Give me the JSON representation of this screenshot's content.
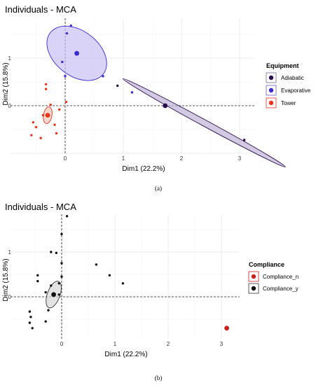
{
  "chart_data": [
    {
      "type": "scatter",
      "title": "Individuals - MCA",
      "xlabel": "Dim1 (22.2%)",
      "ylabel": "Dim2 (15.8%)",
      "xlim": [
        -0.65,
        3.1
      ],
      "ylim": [
        -0.72,
        2.05
      ],
      "x_ticks": [
        "0",
        "1",
        "2",
        "3"
      ],
      "y_ticks": [
        "0",
        "1"
      ],
      "grid": true,
      "legend_title": "Equipment",
      "legend_position": "right",
      "caption": "(a)",
      "series": [
        {
          "name": "Adiabatic",
          "color": "#2a0a4a",
          "points": [
            [
              0.9,
              0.42
            ],
            [
              1.72,
              0.0
            ],
            [
              3.08,
              -0.72
            ]
          ],
          "centroid": [
            1.72,
            0.0
          ]
        },
        {
          "name": "Evaporative",
          "color": "#3a2ad0",
          "points": [
            [
              0.03,
              1.52
            ],
            [
              0.1,
              1.68
            ],
            [
              -0.05,
              0.92
            ],
            [
              0.0,
              0.62
            ],
            [
              0.65,
              0.62
            ],
            [
              1.15,
              0.28
            ]
          ],
          "centroid": [
            0.2,
            1.1
          ]
        },
        {
          "name": "Tower",
          "color": "#e8341c",
          "points": [
            [
              -0.33,
              0.45
            ],
            [
              -0.33,
              0.35
            ],
            [
              0.02,
              0.08
            ],
            [
              -0.25,
              0.02
            ],
            [
              -0.1,
              -0.08
            ],
            [
              -0.3,
              -0.18
            ],
            [
              -0.38,
              -0.2
            ],
            [
              -0.55,
              -0.35
            ],
            [
              -0.5,
              -0.45
            ],
            [
              -0.18,
              -0.4
            ],
            [
              -0.58,
              -0.62
            ],
            [
              -0.42,
              -0.68
            ],
            [
              -0.15,
              -0.58
            ]
          ],
          "centroid": [
            -0.3,
            -0.2
          ]
        }
      ]
    },
    {
      "type": "scatter",
      "title": "Individuals - MCA",
      "xlabel": "Dim1 (22.2%)",
      "ylabel": "Dim2 (15.8%)",
      "xlim": [
        -0.65,
        3.2
      ],
      "ylim": [
        -0.82,
        2.0
      ],
      "x_ticks": [
        "0",
        "1",
        "2",
        "3"
      ],
      "y_ticks": [
        "0",
        "1"
      ],
      "grid": true,
      "legend_title": "Compliance",
      "legend_position": "right",
      "caption": "(b)",
      "series": [
        {
          "name": "Compliance_n",
          "color": "#cc1f1f",
          "points": [
            [
              3.1,
              -0.7
            ]
          ],
          "centroid": [
            3.1,
            -0.7
          ]
        },
        {
          "name": "Compliance_y",
          "color": "#111111",
          "points": [
            [
              0.1,
              1.8
            ],
            [
              0.0,
              1.4
            ],
            [
              -0.2,
              1.0
            ],
            [
              -0.1,
              0.98
            ],
            [
              0.0,
              0.75
            ],
            [
              0.65,
              0.72
            ],
            [
              0.9,
              0.48
            ],
            [
              1.15,
              0.3
            ],
            [
              -0.45,
              0.48
            ],
            [
              -0.45,
              0.35
            ],
            [
              0.0,
              0.45
            ],
            [
              -0.05,
              0.3
            ],
            [
              -0.2,
              0.25
            ],
            [
              -0.3,
              0.1
            ],
            [
              -0.15,
              0.05
            ],
            [
              -0.05,
              0.05
            ],
            [
              -0.6,
              -0.33
            ],
            [
              -0.25,
              -0.3
            ],
            [
              -0.58,
              -0.45
            ],
            [
              -0.6,
              -0.58
            ],
            [
              -0.3,
              -0.55
            ],
            [
              -0.55,
              -0.7
            ]
          ],
          "centroid": [
            -0.15,
            0.05
          ]
        }
      ]
    }
  ]
}
